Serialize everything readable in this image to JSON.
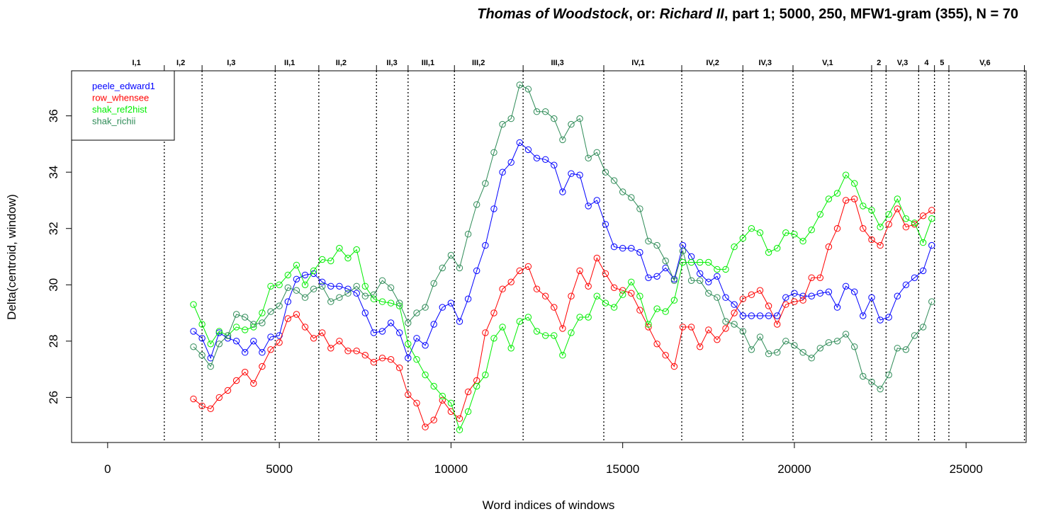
{
  "chart_data": {
    "type": "line",
    "title_parts": [
      {
        "text": "Thomas of Woodstock",
        "italic": true
      },
      {
        "text": ", or: ",
        "italic": false
      },
      {
        "text": "Richard II",
        "italic": true
      },
      {
        "text": ", part 1; 5000, 250, MFW1-gram (355), N = 70",
        "italic": false
      }
    ],
    "xlabel": "Word indices of windows",
    "ylabel": "Delta(centroid, window)",
    "xlim": [
      -1050,
      26750
    ],
    "ylim": [
      24.4,
      37.6
    ],
    "x_ticks": [
      0,
      5000,
      10000,
      15000,
      20000,
      25000
    ],
    "x_tick_labels": [
      "0",
      "5000",
      "10000",
      "15000",
      "20000",
      "25000"
    ],
    "y_ticks": [
      26,
      28,
      30,
      32,
      34,
      36
    ],
    "y_tick_labels": [
      "26",
      "28",
      "30",
      "32",
      "34",
      "36"
    ],
    "legend_position": "top-left",
    "grid": false,
    "x": [
      2500,
      2750,
      3000,
      3250,
      3500,
      3750,
      4000,
      4250,
      4500,
      4750,
      5000,
      5250,
      5500,
      5750,
      6000,
      6250,
      6500,
      6750,
      7000,
      7250,
      7500,
      7750,
      8000,
      8250,
      8500,
      8750,
      9000,
      9250,
      9500,
      9750,
      10000,
      10250,
      10500,
      10750,
      11000,
      11250,
      11500,
      11750,
      12000,
      12250,
      12500,
      12750,
      13000,
      13250,
      13500,
      13750,
      14000,
      14250,
      14500,
      14750,
      15000,
      15250,
      15500,
      15750,
      16000,
      16250,
      16500,
      16750,
      17000,
      17250,
      17500,
      17750,
      18000,
      18250,
      18500,
      18750,
      19000,
      19250,
      19500,
      19750,
      20000,
      20250,
      20500,
      20750,
      21000,
      21250,
      21500,
      21750,
      22000,
      22250,
      22500,
      22750,
      23000,
      23250,
      23500,
      23750,
      24000
    ],
    "act_boundaries": [
      1650,
      2750,
      4880,
      6150,
      7830,
      8750,
      10100,
      12100,
      14450,
      16720,
      18500,
      19960,
      22250,
      22670,
      23620,
      24080,
      24500,
      26700
    ],
    "acts": [
      {
        "label": "I,1",
        "x": 840
      },
      {
        "label": "I,2",
        "x": 2130
      },
      {
        "label": "I,3",
        "x": 3600
      },
      {
        "label": "II,1",
        "x": 5300
      },
      {
        "label": "II,2",
        "x": 6800
      },
      {
        "label": "II,3",
        "x": 8280
      },
      {
        "label": "III,1",
        "x": 9330
      },
      {
        "label": "III,2",
        "x": 10800
      },
      {
        "label": "III,3",
        "x": 13100
      },
      {
        "label": "IV,1",
        "x": 15450
      },
      {
        "label": "IV,2",
        "x": 17620
      },
      {
        "label": "IV,3",
        "x": 19150
      },
      {
        "label": "V,1",
        "x": 20970
      },
      {
        "label": "2",
        "x": 22460
      },
      {
        "label": "V,3",
        "x": 23150
      },
      {
        "label": "4",
        "x": 23850
      },
      {
        "label": "5",
        "x": 24300
      },
      {
        "label": "V,6",
        "x": 25550
      }
    ],
    "series": [
      {
        "name": "peele_edward1",
        "color": "#0000ff",
        "values": [
          28.35,
          28.1,
          27.4,
          28.3,
          28.1,
          28.0,
          27.6,
          28.0,
          27.6,
          28.15,
          28.2,
          29.4,
          30.2,
          30.35,
          30.4,
          30.1,
          29.95,
          29.95,
          29.85,
          29.7,
          29.0,
          28.3,
          28.35,
          28.65,
          28.3,
          27.4,
          28.1,
          27.85,
          28.6,
          29.2,
          29.35,
          28.7,
          29.5,
          30.5,
          31.4,
          32.7,
          34.0,
          34.35,
          35.05,
          34.8,
          34.5,
          34.45,
          34.25,
          33.3,
          33.95,
          33.9,
          32.8,
          33.0,
          32.15,
          31.35,
          31.3,
          31.3,
          31.15,
          30.25,
          30.3,
          30.6,
          30.2,
          31.4,
          31.0,
          30.4,
          30.1,
          30.3,
          29.55,
          29.3,
          28.9,
          28.9,
          28.9,
          28.9,
          28.9,
          29.55,
          29.7,
          29.6,
          29.6,
          29.7,
          29.75,
          29.2,
          29.95,
          29.75,
          28.9,
          29.55,
          28.75,
          28.85,
          29.6,
          30.0,
          30.25,
          30.5,
          31.4
        ]
      },
      {
        "name": "row_whensee",
        "color": "#ff0000",
        "values": [
          25.95,
          25.7,
          25.6,
          26.0,
          26.25,
          26.6,
          26.9,
          26.5,
          27.1,
          27.7,
          27.95,
          28.8,
          28.95,
          28.5,
          28.1,
          28.3,
          27.75,
          28.0,
          27.65,
          27.65,
          27.5,
          27.25,
          27.4,
          27.35,
          27.05,
          26.1,
          25.8,
          24.95,
          25.2,
          25.9,
          25.5,
          25.25,
          26.2,
          26.6,
          28.3,
          29.0,
          29.85,
          30.1,
          30.5,
          30.65,
          29.85,
          29.6,
          29.2,
          28.45,
          29.6,
          30.5,
          29.95,
          30.95,
          30.4,
          29.9,
          29.8,
          29.7,
          29.1,
          28.5,
          27.9,
          27.5,
          27.1,
          28.5,
          28.5,
          27.8,
          28.4,
          28.05,
          28.45,
          29.0,
          29.5,
          29.65,
          29.8,
          29.25,
          28.6,
          29.3,
          29.4,
          29.45,
          30.25,
          30.25,
          31.35,
          32.0,
          33.0,
          33.05,
          32.0,
          31.6,
          31.4,
          32.15,
          32.7,
          32.05,
          32.15,
          32.45,
          32.65
        ]
      },
      {
        "name": "shak_ref2hist",
        "color": "#00ee00",
        "values": [
          29.3,
          28.6,
          27.9,
          28.35,
          28.2,
          28.5,
          28.4,
          28.5,
          29.0,
          29.95,
          30.0,
          30.35,
          30.7,
          30.0,
          30.5,
          30.9,
          30.85,
          31.3,
          30.95,
          31.25,
          29.95,
          29.5,
          29.4,
          29.35,
          29.25,
          27.9,
          27.35,
          26.8,
          26.4,
          26.05,
          25.8,
          24.85,
          25.5,
          26.4,
          26.8,
          28.1,
          28.5,
          27.75,
          28.7,
          28.85,
          28.35,
          28.2,
          28.2,
          27.5,
          28.3,
          28.85,
          28.85,
          29.6,
          29.35,
          29.2,
          29.65,
          30.1,
          29.6,
          28.6,
          29.15,
          29.05,
          29.45,
          30.8,
          30.8,
          30.8,
          30.8,
          30.55,
          30.55,
          31.35,
          31.65,
          32.0,
          31.85,
          31.15,
          31.3,
          31.85,
          31.8,
          31.55,
          31.95,
          32.5,
          33.05,
          33.25,
          33.9,
          33.6,
          32.8,
          32.65,
          32.05,
          32.5,
          33.05,
          32.35,
          32.2,
          31.5,
          32.35
        ]
      },
      {
        "name": "shak_richii",
        "color": "#2e8b57",
        "values": [
          27.8,
          27.5,
          27.1,
          27.9,
          28.2,
          28.95,
          28.85,
          28.6,
          28.65,
          29.05,
          29.25,
          29.9,
          29.8,
          29.55,
          29.85,
          29.95,
          29.4,
          29.55,
          29.7,
          29.95,
          29.6,
          29.65,
          30.15,
          29.9,
          29.35,
          28.65,
          29.0,
          29.2,
          30.05,
          30.6,
          31.05,
          30.6,
          31.8,
          32.85,
          33.6,
          34.7,
          35.7,
          35.9,
          37.1,
          36.95,
          36.15,
          36.15,
          35.9,
          35.15,
          35.7,
          35.9,
          34.5,
          34.7,
          34.0,
          33.7,
          33.3,
          33.1,
          32.7,
          31.55,
          31.4,
          30.85,
          30.15,
          31.2,
          30.15,
          30.15,
          29.7,
          29.55,
          28.7,
          28.6,
          28.35,
          27.7,
          28.15,
          27.55,
          27.6,
          28.0,
          27.85,
          27.6,
          27.4,
          27.75,
          27.95,
          28.0,
          28.25,
          27.8,
          26.75,
          26.55,
          26.3,
          26.8,
          27.75,
          27.7,
          28.2,
          28.5,
          29.4
        ]
      }
    ]
  }
}
